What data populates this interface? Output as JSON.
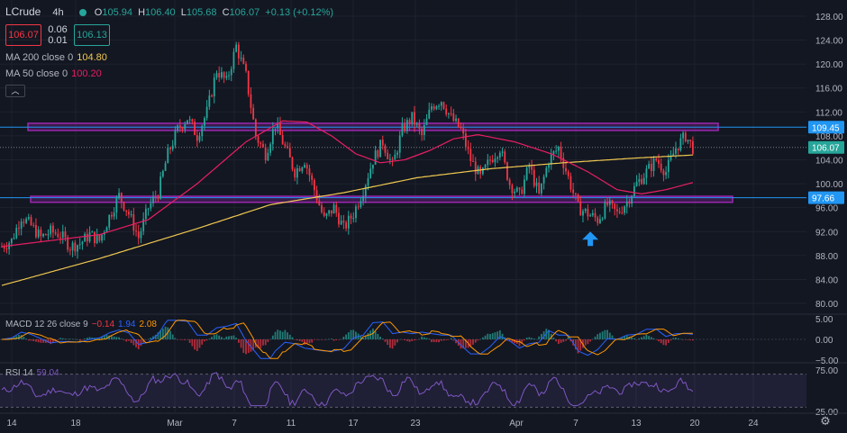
{
  "header": {
    "symbol": "LCrude",
    "timeframe": "4h",
    "ohlc": [
      {
        "label": "O",
        "value": "105.94"
      },
      {
        "label": "H",
        "value": "106.40"
      },
      {
        "label": "L",
        "value": "105.68"
      },
      {
        "label": "C",
        "value": "106.07"
      }
    ],
    "change": "+0.13 (+0.12%)",
    "sell_price": "106.07",
    "spread_top": "0.06",
    "spread_bottom": "0.01",
    "buy_price": "106.13",
    "collapse_icon": "chevron-up-icon"
  },
  "indicators": {
    "ma200": {
      "label": "MA 200 close 0",
      "value": "104.80",
      "color": "#f0c850"
    },
    "ma50": {
      "label": "MA 50 close 0",
      "value": "100.20",
      "color": "#e91e63"
    },
    "macd": {
      "label": "MACD 12 26 close 9",
      "hist": "−0.14",
      "macd": "1.94",
      "signal": "2.08"
    },
    "rsi": {
      "label": "RSI 14",
      "value": "59.04"
    }
  },
  "colors": {
    "background": "#131722",
    "up": "#26a69a",
    "down": "#f23645",
    "grid": "#1e222d",
    "zone": "#9c27b0",
    "hline": "#2196f3",
    "arrow": "#2196f3",
    "rsi": "#7e57c2"
  },
  "chart_data": {
    "type": "candlestick",
    "price_axis": {
      "ticks": [
        "128.00",
        "124.00",
        "120.00",
        "116.00",
        "112.00",
        "108.00",
        "104.00",
        "100.00",
        "96.00",
        "92.00",
        "88.00",
        "84.00",
        "80.00"
      ],
      "ylim": [
        78.5,
        129.5
      ]
    },
    "time_axis": {
      "ticks": [
        "14",
        "18",
        "Mar",
        "7",
        "11",
        "17",
        "23",
        "Apr",
        "7",
        "13",
        "20",
        "24"
      ]
    },
    "price_labels": [
      {
        "value": "109.45",
        "kind": "horizontal-line"
      },
      {
        "value": "106.07",
        "kind": "last-price"
      },
      {
        "value": "97.66",
        "kind": "horizontal-line"
      }
    ],
    "zones": [
      {
        "from": 108.9,
        "to": 110.1
      },
      {
        "from": 96.9,
        "to": 97.9
      }
    ],
    "hlines": [
      109.45,
      97.66
    ],
    "last_price": 106.07,
    "close_path": [
      [
        0,
        89.5
      ],
      [
        4,
        90.5
      ],
      [
        8,
        94.5
      ],
      [
        12,
        93
      ],
      [
        16,
        91
      ],
      [
        20,
        92
      ],
      [
        24,
        91.5
      ],
      [
        28,
        89.5
      ],
      [
        32,
        90
      ],
      [
        36,
        91.5
      ],
      [
        40,
        90.5
      ],
      [
        44,
        94.5
      ],
      [
        48,
        98
      ],
      [
        52,
        95
      ],
      [
        56,
        91
      ],
      [
        60,
        96
      ],
      [
        64,
        98.5
      ],
      [
        68,
        105
      ],
      [
        72,
        109
      ],
      [
        76,
        111
      ],
      [
        80,
        108
      ],
      [
        84,
        112
      ],
      [
        88,
        119
      ],
      [
        92,
        117
      ],
      [
        96,
        123
      ],
      [
        100,
        118
      ],
      [
        104,
        108
      ],
      [
        108,
        105
      ],
      [
        112,
        110
      ],
      [
        116,
        106
      ],
      [
        120,
        102
      ],
      [
        124,
        104
      ],
      [
        128,
        99
      ],
      [
        132,
        94
      ],
      [
        136,
        96
      ],
      [
        140,
        92.5
      ],
      [
        144,
        95
      ],
      [
        148,
        99
      ],
      [
        152,
        104
      ],
      [
        156,
        107
      ],
      [
        160,
        103
      ],
      [
        164,
        109
      ],
      [
        168,
        111
      ],
      [
        172,
        108
      ],
      [
        176,
        113
      ],
      [
        180,
        114
      ],
      [
        184,
        111
      ],
      [
        188,
        109
      ],
      [
        192,
        104
      ],
      [
        196,
        101
      ],
      [
        200,
        104
      ],
      [
        204,
        106
      ],
      [
        208,
        100
      ],
      [
        212,
        98
      ],
      [
        216,
        103
      ],
      [
        220,
        98
      ],
      [
        224,
        104
      ],
      [
        228,
        106
      ],
      [
        232,
        101
      ],
      [
        236,
        96
      ],
      [
        240,
        95
      ],
      [
        244,
        94
      ],
      [
        248,
        96.5
      ],
      [
        252,
        95
      ],
      [
        256,
        97
      ],
      [
        260,
        100
      ],
      [
        264,
        102
      ],
      [
        268,
        104
      ],
      [
        272,
        102
      ],
      [
        276,
        106
      ],
      [
        280,
        108
      ],
      [
        283,
        106
      ]
    ],
    "ma200_path": [
      [
        0,
        83
      ],
      [
        40,
        87.5
      ],
      [
        80,
        92.5
      ],
      [
        110,
        96.5
      ],
      [
        140,
        98.5
      ],
      [
        170,
        101
      ],
      [
        200,
        102.5
      ],
      [
        230,
        103.5
      ],
      [
        260,
        104.3
      ],
      [
        283,
        104.8
      ]
    ],
    "ma50_path": [
      [
        0,
        89.5
      ],
      [
        20,
        90.5
      ],
      [
        40,
        91.5
      ],
      [
        60,
        94
      ],
      [
        80,
        100
      ],
      [
        100,
        107
      ],
      [
        115,
        110.5
      ],
      [
        125,
        110.3
      ],
      [
        135,
        108
      ],
      [
        145,
        105
      ],
      [
        155,
        103.5
      ],
      [
        165,
        104
      ],
      [
        175,
        105.5
      ],
      [
        185,
        107.5
      ],
      [
        195,
        108.2
      ],
      [
        210,
        107
      ],
      [
        225,
        105
      ],
      [
        240,
        102
      ],
      [
        252,
        99
      ],
      [
        262,
        98.3
      ],
      [
        272,
        99
      ],
      [
        283,
        100.2
      ]
    ],
    "macd": {
      "ylim": [
        -5,
        5
      ],
      "ticks": [
        "5.00",
        "0.00",
        "−5.00"
      ]
    },
    "rsi": {
      "ylim": [
        25,
        75
      ],
      "ticks": [
        "75.00",
        "25.00"
      ],
      "band": [
        30,
        70
      ]
    },
    "annotations": [
      {
        "type": "arrow-up",
        "x": 241,
        "y": 92
      }
    ]
  }
}
